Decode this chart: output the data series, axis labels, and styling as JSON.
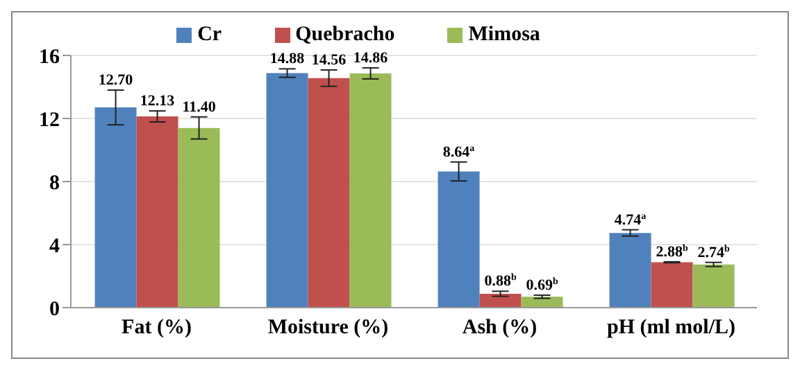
{
  "chart_data": {
    "type": "bar",
    "categories": [
      "Fat (%)",
      "Moisture (%)",
      "Ash (%)",
      "pH (ml mol/L)"
    ],
    "series": [
      {
        "name": "Cr",
        "color": "#4f81bd",
        "values": [
          12.7,
          14.88,
          8.64,
          4.74
        ],
        "errors": [
          1.1,
          0.27,
          0.6,
          0.2
        ],
        "value_labels": [
          "12.70",
          "14.88",
          "8.64$^{a}$",
          "4.74$^{a}$"
        ]
      },
      {
        "name": "Quebracho",
        "color": "#c0504d",
        "values": [
          12.13,
          14.56,
          0.88,
          2.88
        ],
        "errors": [
          0.35,
          0.52,
          0.16,
          0.03
        ],
        "value_labels": [
          "12.13",
          "14.56",
          "0.88$^{b}$",
          "2.88$^{b}$"
        ]
      },
      {
        "name": "Mimosa",
        "color": "#9bbb59",
        "values": [
          11.4,
          14.86,
          0.69,
          2.74
        ],
        "errors": [
          0.7,
          0.35,
          0.1,
          0.13
        ],
        "value_labels": [
          "11.40",
          "14.86",
          "0.69$^{b}$",
          "2.74$^{b}$"
        ]
      }
    ],
    "ylim": [
      0,
      16
    ],
    "yticks": [
      0,
      4,
      8,
      12,
      16
    ],
    "grid": "y",
    "legend": "top"
  }
}
